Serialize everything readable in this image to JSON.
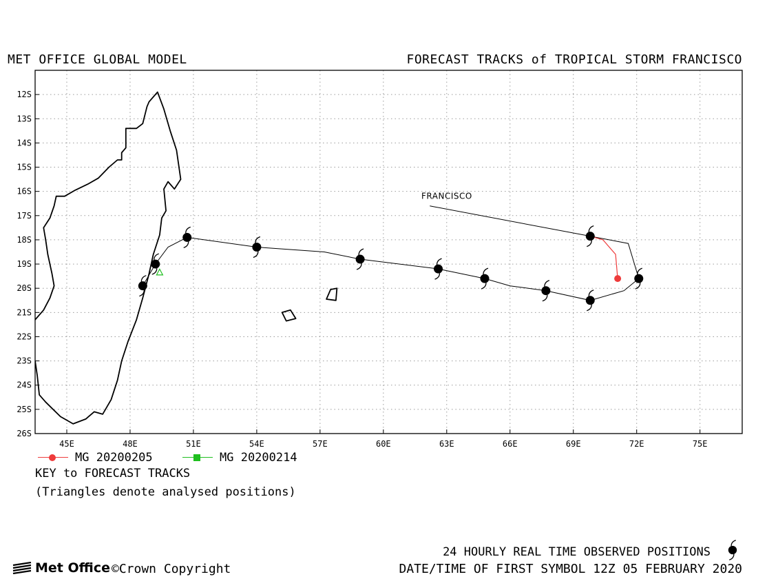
{
  "header": {
    "left_title": "MET OFFICE GLOBAL MODEL",
    "right_title": "FORECAST TRACKS of TROPICAL STORM FRANCISCO"
  },
  "map": {
    "lon_range": [
      43.5,
      77.0
    ],
    "lat_range": [
      -26.0,
      -11.0
    ],
    "grid": true,
    "lon_ticks": [
      {
        "lon": 45,
        "label": "45E"
      },
      {
        "lon": 48,
        "label": "48E"
      },
      {
        "lon": 51,
        "label": "51E"
      },
      {
        "lon": 54,
        "label": "54E"
      },
      {
        "lon": 57,
        "label": "57E"
      },
      {
        "lon": 60,
        "label": "60E"
      },
      {
        "lon": 63,
        "label": "63E"
      },
      {
        "lon": 66,
        "label": "66E"
      },
      {
        "lon": 69,
        "label": "69E"
      },
      {
        "lon": 72,
        "label": "72E"
      },
      {
        "lon": 75,
        "label": "75E"
      }
    ],
    "lat_ticks": [
      {
        "lat": -12,
        "label": "12S"
      },
      {
        "lat": -13,
        "label": "13S"
      },
      {
        "lat": -14,
        "label": "14S"
      },
      {
        "lat": -15,
        "label": "15S"
      },
      {
        "lat": -16,
        "label": "16S"
      },
      {
        "lat": -17,
        "label": "17S"
      },
      {
        "lat": -18,
        "label": "18S"
      },
      {
        "lat": -19,
        "label": "19S"
      },
      {
        "lat": -20,
        "label": "20S"
      },
      {
        "lat": -21,
        "label": "21S"
      },
      {
        "lat": -22,
        "label": "22S"
      },
      {
        "lat": -23,
        "label": "23S"
      },
      {
        "lat": -24,
        "label": "24S"
      },
      {
        "lat": -25,
        "label": "25S"
      },
      {
        "lat": -26,
        "label": "26S"
      }
    ],
    "colors": {
      "frame": "#000000",
      "coast": "#000000",
      "grid": "#9a9a9a",
      "observed_track": "#000000",
      "forecast_20200205": "#ee3b3b",
      "forecast_20200214": "#1fbf1f"
    },
    "storm_label": {
      "text": "FRANCISCO",
      "leader_from": [
        62.2,
        -16.6
      ],
      "leader_to": [
        69.8,
        -17.85
      ],
      "text_at": [
        61.8,
        -16.2
      ]
    },
    "observed_track": [
      [
        69.8,
        -17.85
      ],
      [
        71.6,
        -18.15
      ],
      [
        72.1,
        -19.6
      ],
      [
        71.4,
        -20.1
      ],
      [
        69.8,
        -20.5
      ],
      [
        67.7,
        -20.1
      ],
      [
        66.0,
        -19.9
      ],
      [
        64.8,
        -19.6
      ],
      [
        62.6,
        -19.2
      ],
      [
        58.9,
        -18.8
      ],
      [
        57.2,
        -18.5
      ],
      [
        54.0,
        -18.3
      ],
      [
        50.7,
        -17.9
      ],
      [
        49.8,
        -18.3
      ],
      [
        49.2,
        -19.0
      ],
      [
        48.6,
        -19.9
      ]
    ],
    "observed_symbols": [
      [
        69.8,
        -17.85
      ],
      [
        72.1,
        -19.6
      ],
      [
        69.8,
        -20.5
      ],
      [
        67.7,
        -20.1
      ],
      [
        64.8,
        -19.6
      ],
      [
        62.6,
        -19.2
      ],
      [
        58.9,
        -18.8
      ],
      [
        54.0,
        -18.3
      ],
      [
        50.7,
        -17.9
      ],
      [
        49.2,
        -19.0
      ],
      [
        48.6,
        -19.9
      ]
    ],
    "forecast_20200205": [
      [
        71.1,
        -19.6
      ],
      [
        71.0,
        -18.6
      ],
      [
        70.4,
        -18.0
      ],
      [
        69.8,
        -17.85
      ]
    ],
    "analysed_triangles": [
      [
        49.4,
        -19.35
      ]
    ],
    "coastline": [
      [
        43.5,
        -21.3
      ],
      [
        43.9,
        -20.9
      ],
      [
        44.2,
        -20.4
      ],
      [
        44.4,
        -19.9
      ],
      [
        44.3,
        -19.4
      ],
      [
        44.1,
        -18.6
      ],
      [
        44.0,
        -18.0
      ],
      [
        43.9,
        -17.5
      ],
      [
        44.2,
        -17.1
      ],
      [
        44.4,
        -16.6
      ],
      [
        44.5,
        -16.2
      ],
      [
        44.9,
        -16.2
      ],
      [
        45.4,
        -15.95
      ],
      [
        46.0,
        -15.7
      ],
      [
        46.5,
        -15.45
      ],
      [
        47.0,
        -15.0
      ],
      [
        47.4,
        -14.7
      ],
      [
        47.6,
        -14.7
      ],
      [
        47.6,
        -14.4
      ],
      [
        47.8,
        -14.2
      ],
      [
        47.8,
        -13.4
      ],
      [
        48.3,
        -13.4
      ],
      [
        48.6,
        -13.2
      ],
      [
        48.8,
        -12.5
      ],
      [
        48.9,
        -12.3
      ],
      [
        49.3,
        -11.9
      ],
      [
        49.6,
        -12.6
      ],
      [
        49.9,
        -13.5
      ],
      [
        50.2,
        -14.3
      ],
      [
        50.4,
        -15.5
      ],
      [
        50.1,
        -15.9
      ],
      [
        49.8,
        -15.6
      ],
      [
        49.6,
        -15.9
      ],
      [
        49.7,
        -16.8
      ],
      [
        49.5,
        -17.1
      ],
      [
        49.4,
        -17.8
      ],
      [
        49.1,
        -18.6
      ],
      [
        48.9,
        -19.4
      ],
      [
        48.6,
        -20.4
      ],
      [
        48.3,
        -21.3
      ],
      [
        47.9,
        -22.2
      ],
      [
        47.6,
        -23.0
      ],
      [
        47.4,
        -23.8
      ],
      [
        47.1,
        -24.6
      ],
      [
        46.7,
        -25.2
      ],
      [
        46.3,
        -25.1
      ],
      [
        45.9,
        -25.4
      ],
      [
        45.3,
        -25.6
      ],
      [
        44.7,
        -25.3
      ],
      [
        44.0,
        -24.7
      ],
      [
        43.7,
        -24.4
      ],
      [
        43.6,
        -23.6
      ],
      [
        43.5,
        -23.0
      ]
    ],
    "islands": [
      [
        [
          57.3,
          -20.45
        ],
        [
          57.5,
          -20.05
        ],
        [
          57.8,
          -20.0
        ],
        [
          57.75,
          -20.5
        ],
        [
          57.3,
          -20.45
        ]
      ],
      [
        [
          55.2,
          -21.0
        ],
        [
          55.6,
          -20.9
        ],
        [
          55.85,
          -21.25
        ],
        [
          55.4,
          -21.35
        ],
        [
          55.2,
          -21.0
        ]
      ]
    ]
  },
  "legend": {
    "entries": [
      {
        "label": "MG 20200205",
        "color": "#ee3b3b",
        "marker": "circle"
      },
      {
        "label": "MG 20200214",
        "color": "#1fbf1f",
        "marker": "square"
      }
    ],
    "key_title": "KEY to FORECAST TRACKS",
    "key_note": "(Triangles denote analysed positions)"
  },
  "footer": {
    "observed_label": "24 HOURLY REAL TIME OBSERVED POSITIONS",
    "first_symbol": "DATE/TIME OF FIRST SYMBOL 12Z 05 FEBRUARY 2020",
    "brand": "Met Office",
    "copyright": "©Crown Copyright"
  },
  "icons": {
    "observed_symbol": "tropical-storm-symbol-icon",
    "brand_logo": "met-office-swirl-icon"
  }
}
